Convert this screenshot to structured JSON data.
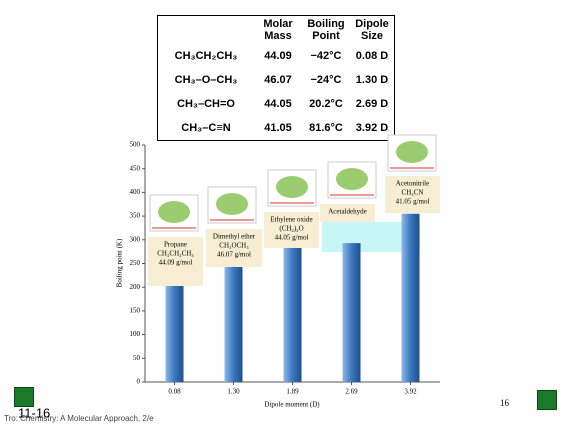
{
  "table": {
    "header": [
      "Molar Mass",
      "Boiling Point",
      "Dipole Size"
    ],
    "rows": [
      [
        "CH₃CH₂CH₃",
        "44.09",
        "−42°C",
        "0.08 D"
      ],
      [
        "CH₃–O–CH₃",
        "46.07",
        "−24°C",
        "1.30 D"
      ],
      [
        "CH₃–CH=O",
        "44.05",
        "20.2°C",
        "2.69 D"
      ],
      [
        "CH₃–C≡N",
        "41.05",
        "81.6°C",
        "3.92 D"
      ]
    ]
  },
  "chart_data": {
    "type": "bar",
    "x_label": "Dipole moment (D)",
    "y_label": "Boiling point (K)",
    "categories": [
      "0.08",
      "1.30",
      "1.89",
      "2.69",
      "3.92"
    ],
    "values": [
      231,
      249,
      284,
      293,
      355
    ],
    "color": "#3a78c0",
    "ylim": [
      0,
      500
    ],
    "yticks": [
      0,
      50,
      100,
      150,
      200,
      250,
      300,
      350,
      400,
      450,
      500
    ],
    "annotations": [
      {
        "lines": [
          "Propane",
          "CH₃CH₂CH₃",
          "44.09 g/mol"
        ]
      },
      {
        "lines": [
          "Dimethyl ether",
          "CH₃OCH₃",
          "46.07 g/mol"
        ]
      },
      {
        "lines": [
          "Ethylene oxide",
          "(CH₂)₂O",
          "44.05 g/mol"
        ]
      },
      {
        "lines": [
          "Acetaldehyde"
        ]
      },
      {
        "lines": [
          "Acetonitrile",
          "CH₃CN",
          "41.05 g/mol"
        ]
      }
    ]
  },
  "footer": {
    "slide_id": "11-16",
    "source": "Tro: Chemistry: A Molecular Approach, 2/e",
    "page": "16"
  }
}
